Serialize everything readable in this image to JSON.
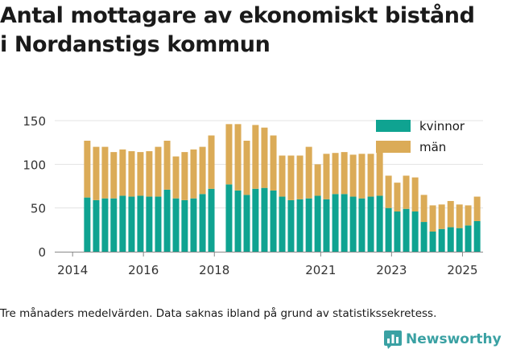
{
  "title_lines": [
    "Antal mottagare av ekonomiskt bistånd",
    "i Nordanstigs kommun"
  ],
  "footnote": "Tre månaders medelvärden. Data saknas ibland på grund av statistikssekretess.",
  "brand": {
    "name": "Newsworthy",
    "icon": "bar-chart-logo-icon",
    "color": "#3aa1a3"
  },
  "chart_data": {
    "type": "bar",
    "stacked": true,
    "x_ticks": [
      "2014",
      "2016",
      "2018",
      "2021",
      "2023",
      "2025"
    ],
    "x_tick_dates": [
      "2014-01-01",
      "2016-01-01",
      "2018-01-01",
      "2021-01-01",
      "2023-01-01",
      "2025-01-01"
    ],
    "x_range": [
      "2013-07-01",
      "2025-08-01"
    ],
    "ylim": [
      0,
      160
    ],
    "y_ticks": [
      0,
      50,
      100,
      150
    ],
    "grid": "horizontal",
    "legend_position": "top-right",
    "x": [
      "2014-06-01",
      "2014-09-01",
      "2014-12-01",
      "2015-03-01",
      "2015-06-01",
      "2015-09-01",
      "2015-12-01",
      "2016-03-01",
      "2016-06-01",
      "2016-09-01",
      "2016-12-01",
      "2017-03-01",
      "2017-06-01",
      "2017-09-01",
      "2017-12-01",
      "2018-06-01",
      "2018-09-01",
      "2018-12-01",
      "2019-03-01",
      "2019-06-01",
      "2019-09-01",
      "2019-12-01",
      "2020-03-01",
      "2020-06-01",
      "2020-09-01",
      "2020-12-01",
      "2021-03-01",
      "2021-06-01",
      "2021-09-01",
      "2021-12-01",
      "2022-03-01",
      "2022-06-01",
      "2022-09-01",
      "2022-12-01",
      "2023-03-01",
      "2023-06-01",
      "2023-09-01",
      "2023-12-01",
      "2024-03-01",
      "2024-06-01",
      "2024-09-01",
      "2024-12-01",
      "2025-03-01",
      "2025-06-01"
    ],
    "series": [
      {
        "name": "kvinnor",
        "color": "#0fa391",
        "values": [
          62,
          59,
          61,
          61,
          64,
          63,
          64,
          63,
          63,
          71,
          61,
          59,
          61,
          66,
          72,
          77,
          70,
          65,
          72,
          73,
          70,
          63,
          59,
          60,
          61,
          64,
          60,
          66,
          66,
          63,
          61,
          63,
          64,
          50,
          46,
          49,
          46,
          34,
          23,
          26,
          28,
          27,
          30,
          35
        ]
      },
      {
        "name": "män",
        "color": "#dbab57",
        "values": [
          65,
          61,
          59,
          53,
          53,
          52,
          50,
          52,
          57,
          56,
          48,
          55,
          56,
          54,
          61,
          69,
          76,
          62,
          73,
          69,
          63,
          47,
          51,
          50,
          59,
          36,
          52,
          47,
          48,
          48,
          51,
          49,
          50,
          37,
          33,
          38,
          39,
          31,
          30,
          28,
          30,
          27,
          23,
          28
        ]
      }
    ]
  }
}
